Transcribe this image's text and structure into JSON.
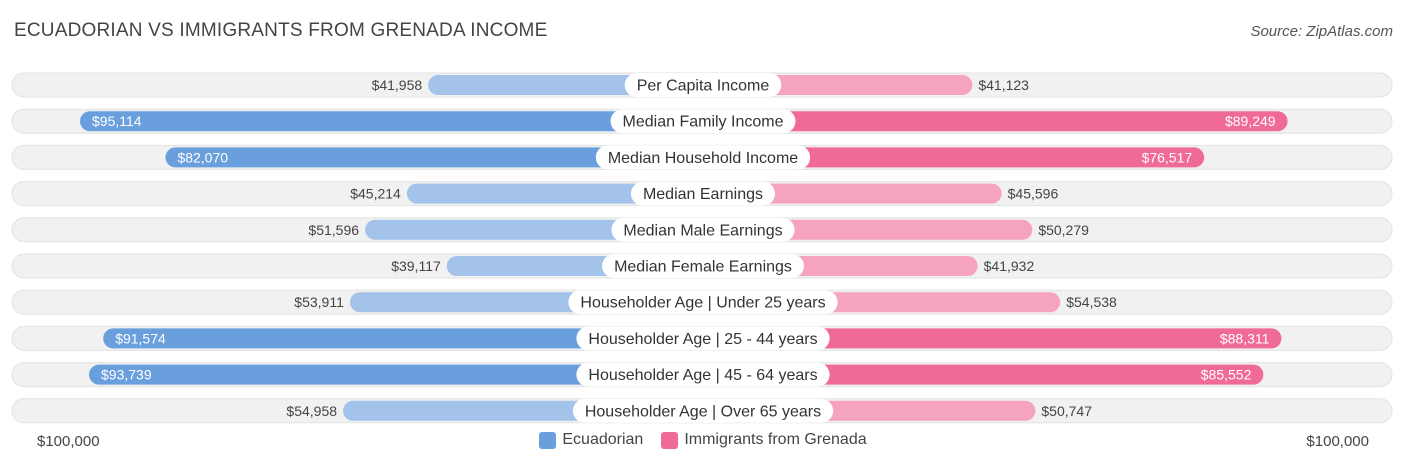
{
  "header": {
    "title": "ECUADORIAN VS IMMIGRANTS FROM GRENADA INCOME",
    "source": "Source: ZipAtlas.com"
  },
  "axis": {
    "left_label": "$100,000",
    "right_label": "$100,000"
  },
  "legend": {
    "left": {
      "label": "Ecuadorian",
      "color": "#6a9fde"
    },
    "right": {
      "label": "Immigrants from Grenada",
      "color": "#f06a97"
    }
  },
  "colors": {
    "left_strong": "#6a9fde",
    "left_light": "#a3c3ea",
    "right_strong": "#f06a97",
    "right_light": "#f6a3bf",
    "track": "#f1f1f1"
  },
  "chart_data": {
    "type": "bar",
    "orientation": "horizontal-diverging",
    "max": 100000,
    "categories": [
      "Per Capita Income",
      "Median Family Income",
      "Median Household Income",
      "Median Earnings",
      "Median Male Earnings",
      "Median Female Earnings",
      "Householder Age | Under 25 years",
      "Householder Age | 25 - 44 years",
      "Householder Age | 45 - 64 years",
      "Householder Age | Over 65 years"
    ],
    "series": [
      {
        "name": "Ecuadorian",
        "values": [
          41958,
          95114,
          82070,
          45214,
          51596,
          39117,
          53911,
          91574,
          93739,
          54958
        ],
        "labels": [
          "$41,958",
          "$95,114",
          "$82,070",
          "$45,214",
          "$51,596",
          "$39,117",
          "$53,911",
          "$91,574",
          "$93,739",
          "$54,958"
        ]
      },
      {
        "name": "Immigrants from Grenada",
        "values": [
          41123,
          89249,
          76517,
          45596,
          50279,
          41932,
          54538,
          88311,
          85552,
          50747
        ],
        "labels": [
          "$41,123",
          "$89,249",
          "$76,517",
          "$45,596",
          "$50,279",
          "$41,932",
          "$54,538",
          "$88,311",
          "$85,552",
          "$50,747"
        ]
      }
    ]
  }
}
